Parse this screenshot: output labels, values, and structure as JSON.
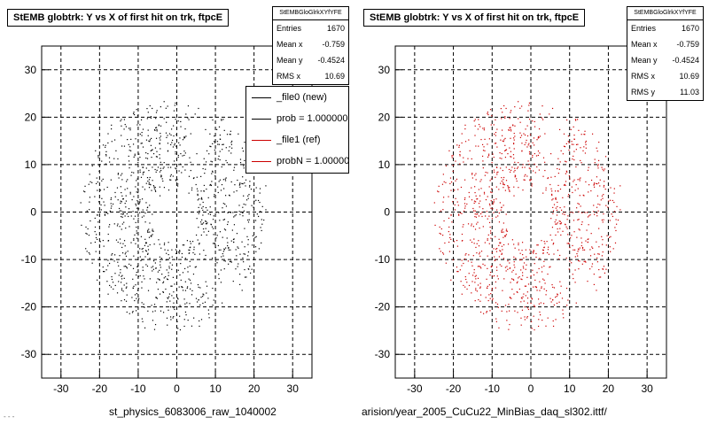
{
  "chart_data": [
    {
      "type": "scatter",
      "title": "StEMB globtrk: Y vs X of first hit on trk, ftpcE",
      "xlim": [
        -35,
        35
      ],
      "ylim": [
        -35,
        35
      ],
      "x_ticks": [
        "-30",
        "-20",
        "-10",
        "0",
        "10",
        "20",
        "30"
      ],
      "y_ticks": [
        "30",
        "20",
        "10",
        "0",
        "-10",
        "-20",
        "-30"
      ],
      "grid": true,
      "marker_color": "#000000",
      "stats": {
        "header": "StEMBGloGlrkXYfYFE",
        "rows": [
          {
            "label": "Entries",
            "value": "1670"
          },
          {
            "label": "Mean x",
            "value": "-0.759"
          },
          {
            "label": "Mean y",
            "value": "-0.4524"
          },
          {
            "label": "RMS x",
            "value": "10.69"
          }
        ]
      },
      "legend": {
        "placement": "top-right",
        "entries": [
          {
            "label": "_file0 (new)",
            "color": "#000000"
          },
          {
            "label": "prob = 1.000000",
            "color": "#000000"
          },
          {
            "label": "_file1 (ref)",
            "color": "#cc0000"
          },
          {
            "label": "probN = 1.000000",
            "color": "#cc0000"
          }
        ]
      },
      "footer": "st_physics_6083006_raw_1040002"
    },
    {
      "type": "scatter",
      "title": "StEMB globtrk: Y vs X of first hit on trk, ftpcE",
      "xlim": [
        -35,
        35
      ],
      "ylim": [
        -35,
        35
      ],
      "x_ticks": [
        "-30",
        "-20",
        "-10",
        "0",
        "10",
        "20",
        "30"
      ],
      "y_ticks": [
        "30",
        "20",
        "10",
        "0",
        "-10",
        "-20",
        "-30"
      ],
      "grid": true,
      "marker_color": "#cc0000",
      "stats": {
        "header": "StEMBGloGlrkXYfYFE",
        "rows": [
          {
            "label": "Entries",
            "value": "1670"
          },
          {
            "label": "Mean x",
            "value": "-0.759"
          },
          {
            "label": "Mean y",
            "value": "-0.4524"
          },
          {
            "label": "RMS x",
            "value": "10.69"
          },
          {
            "label": "RMS y",
            "value": "11.03"
          }
        ]
      },
      "footer": "arision/year_2005_CuCu22_MinBias_daq_sl302.ittf/"
    }
  ],
  "corner_note": "- - -"
}
